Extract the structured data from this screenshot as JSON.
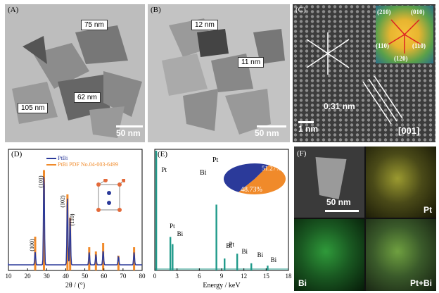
{
  "panels": {
    "a": {
      "label": "(A)",
      "callouts": [
        "75 nm",
        "62 nm",
        "105 nm"
      ],
      "scale": "50 nm"
    },
    "b": {
      "label": "(B)",
      "callouts": [
        "12 nm",
        "11 nm"
      ],
      "scale": "50 nm"
    },
    "c": {
      "label": "(C)",
      "fft_labels": [
        "(210)",
        "(010)",
        "(110)",
        "(110)",
        "(120)"
      ],
      "d_spacing": "0.31 nm",
      "scale": "1 nm",
      "zone_axis": "[001]"
    },
    "d": {
      "label": "(D)",
      "legend": [
        "PtBi",
        "PtBi PDF No.04-003-6499"
      ],
      "peak_labels": [
        "(100)",
        "(101)",
        "(102)",
        "(110)"
      ]
    },
    "e": {
      "label": "(E)",
      "peak_labels": [
        "Pt",
        "Pt",
        "Bi",
        "Bi",
        "Pt",
        "Bi",
        "Bi",
        "Bi"
      ],
      "pie_labels": [
        "Pt",
        "Bi"
      ],
      "pie_values": [
        "51.27%",
        "48.73%"
      ]
    },
    "f": {
      "label": "(F)",
      "scale": "50 nm",
      "map_labels": [
        "Pt",
        "Bi",
        "Pt+Bi"
      ]
    }
  },
  "chart_data": [
    {
      "type": "line",
      "panel": "D",
      "xlabel": "2θ / (°)",
      "xlim": [
        10,
        80
      ],
      "x_ticks": [
        10,
        20,
        30,
        40,
        50,
        60,
        70,
        80
      ],
      "series": [
        {
          "name": "PtBi",
          "peaks_x": [
            24.0,
            28.6,
            40.9,
            42.3,
            52.3,
            55.8,
            59.6,
            67.6,
            75.8
          ],
          "peaks_rel_height": [
            0.12,
            0.9,
            0.68,
            0.45,
            0.12,
            0.1,
            0.14,
            0.08,
            0.12
          ]
        },
        {
          "name": "PtBi PDF No.04-003-6499",
          "peaks_x": [
            24.0,
            28.6,
            40.9,
            42.3,
            52.3,
            55.8,
            59.6,
            67.6,
            75.8
          ],
          "peaks_rel_height": [
            0.32,
            0.95,
            0.72,
            0.5,
            0.22,
            0.18,
            0.26,
            0.14,
            0.22
          ]
        }
      ],
      "colors": {
        "PtBi": "#2b3a9a",
        "PtBi PDF No.04-003-6499": "#f08a2a"
      }
    },
    {
      "type": "bar",
      "panel": "E",
      "xlabel": "Energy / keV",
      "xlim": [
        0,
        18
      ],
      "x_ticks": [
        0,
        3,
        6,
        9,
        12,
        15,
        18
      ],
      "peaks_x": [
        0.2,
        2.1,
        2.4,
        8.3,
        9.4,
        11.1,
        13.0,
        15.2
      ],
      "peaks_rel_height": [
        1.0,
        0.28,
        0.22,
        0.55,
        0.1,
        0.14,
        0.06,
        0.04
      ],
      "color": "#1f9a8a"
    },
    {
      "type": "pie",
      "panel": "E-inset",
      "labels": [
        "Pt",
        "Bi"
      ],
      "values": [
        51.27,
        48.73
      ],
      "colors": [
        "#f08a2a",
        "#2b3a9a"
      ]
    }
  ]
}
